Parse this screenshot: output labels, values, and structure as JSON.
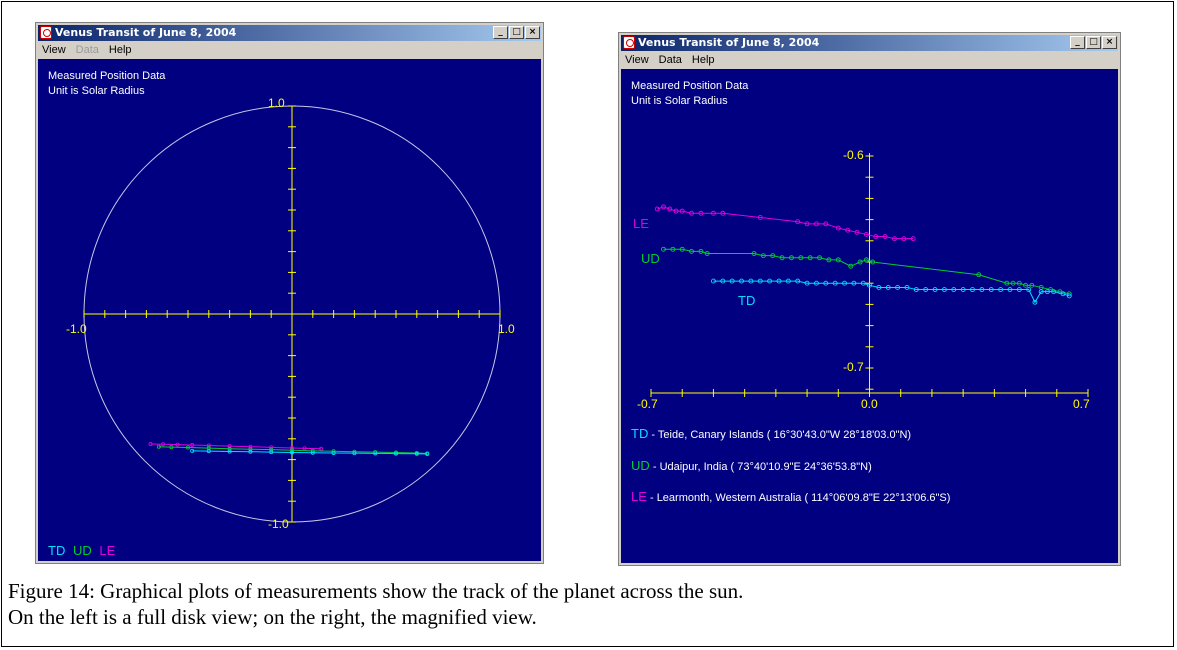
{
  "windows": {
    "left": {
      "title": "Venus Transit of June 8, 2004",
      "menu": [
        {
          "label": "View",
          "enabled": true
        },
        {
          "label": "Data",
          "enabled": false
        },
        {
          "label": "Help",
          "enabled": true
        }
      ],
      "info_line1": "Measured Position Data",
      "info_line2": "Unit is Solar Radius",
      "x_ticks": [
        "-1.0",
        "1.0"
      ],
      "y_ticks": [
        "1.0",
        "-1.0"
      ],
      "legend": [
        "TD",
        "UD",
        "LE"
      ]
    },
    "right": {
      "title": "Venus Transit of June 8, 2004",
      "menu": [
        {
          "label": "View",
          "enabled": true
        },
        {
          "label": "Data",
          "enabled": true
        },
        {
          "label": "Help",
          "enabled": true
        }
      ],
      "info_line1": "Measured Position Data",
      "info_line2": "Unit is Solar Radius",
      "x_ticks": [
        "-0.7",
        "0.0",
        "0.7"
      ],
      "y_ticks": [
        "-0.6",
        "-0.7"
      ],
      "series_labels": [
        "LE",
        "UD",
        "TD"
      ],
      "legend": [
        {
          "code": "TD",
          "sep": " - ",
          "text": "Teide, Canary Islands ( 16°30'43.0\"W  28°18'03.0\"N)"
        },
        {
          "code": "UD",
          "sep": " - ",
          "text": "Udaipur, India ( 73°40'10.9\"E  24°36'53.8\"N)"
        },
        {
          "code": "LE",
          "sep": " - ",
          "text": "Learmonth, Western Australia ( 114°06'09.8\"E  22°13'06.6\"S)"
        }
      ]
    }
  },
  "colors": {
    "TD": "#00e0ff",
    "UD": "#00cc33",
    "LE": "#e000e0",
    "axis": "#ffff00",
    "plot_bg": "#000080"
  },
  "chart_data": [
    {
      "type": "scatter",
      "title": "",
      "xlim": [
        -1.0,
        1.0
      ],
      "ylim": [
        -1.0,
        1.0
      ],
      "series": [
        {
          "name": "LE",
          "x": [
            -0.68,
            -0.62,
            -0.55,
            -0.48,
            -0.4,
            -0.3,
            -0.2,
            -0.1,
            0.0,
            0.06,
            0.14
          ],
          "y": [
            -0.625,
            -0.626,
            -0.628,
            -0.63,
            -0.632,
            -0.635,
            -0.638,
            -0.641,
            -0.644,
            -0.646,
            -0.648
          ]
        },
        {
          "name": "UD",
          "x": [
            -0.64,
            -0.58,
            -0.5,
            -0.4,
            -0.3,
            -0.2,
            -0.1,
            0.0,
            0.1,
            0.2,
            0.3,
            0.4,
            0.5,
            0.6,
            0.65
          ],
          "y": [
            -0.638,
            -0.64,
            -0.642,
            -0.645,
            -0.648,
            -0.65,
            -0.652,
            -0.655,
            -0.658,
            -0.66,
            -0.662,
            -0.664,
            -0.666,
            -0.668,
            -0.67
          ]
        },
        {
          "name": "TD",
          "x": [
            -0.48,
            -0.4,
            -0.3,
            -0.2,
            -0.1,
            0.0,
            0.1,
            0.2,
            0.3,
            0.4,
            0.5,
            0.6,
            0.65
          ],
          "y": [
            -0.658,
            -0.659,
            -0.661,
            -0.662,
            -0.664,
            -0.666,
            -0.667,
            -0.668,
            -0.669,
            -0.67,
            -0.671,
            -0.672,
            -0.673
          ]
        }
      ]
    },
    {
      "type": "line",
      "title": "",
      "xlim": [
        -0.7,
        0.7
      ],
      "ylim": [
        -0.72,
        -0.6
      ],
      "series": [
        {
          "name": "LE",
          "x": [
            -0.68,
            -0.66,
            -0.64,
            -0.62,
            -0.6,
            -0.57,
            -0.54,
            -0.5,
            -0.47,
            -0.35,
            -0.23,
            -0.2,
            -0.17,
            -0.14,
            -0.1,
            -0.07,
            -0.04,
            -0.01,
            0.02,
            0.05,
            0.08,
            0.11,
            0.14
          ],
          "y": [
            -0.625,
            -0.624,
            -0.625,
            -0.626,
            -0.626,
            -0.627,
            -0.627,
            -0.627,
            -0.627,
            -0.629,
            -0.631,
            -0.632,
            -0.632,
            -0.632,
            -0.634,
            -0.635,
            -0.636,
            -0.637,
            -0.638,
            -0.638,
            -0.639,
            -0.639,
            -0.639
          ]
        },
        {
          "name": "UD",
          "x": [
            -0.66,
            -0.63,
            -0.6,
            -0.57,
            -0.54,
            -0.52,
            -0.37,
            -0.34,
            -0.31,
            -0.28,
            -0.25,
            -0.22,
            -0.19,
            -0.16,
            -0.13,
            -0.1,
            -0.06,
            -0.03,
            -0.01,
            0.01,
            0.35,
            0.44,
            0.46,
            0.48,
            0.5,
            0.52,
            0.55,
            0.58,
            0.61,
            0.64
          ],
          "y": [
            -0.644,
            -0.644,
            -0.644,
            -0.645,
            -0.645,
            -0.646,
            -0.646,
            -0.647,
            -0.647,
            -0.648,
            -0.648,
            -0.648,
            -0.648,
            -0.648,
            -0.649,
            -0.649,
            -0.652,
            -0.65,
            -0.649,
            -0.65,
            -0.656,
            -0.66,
            -0.66,
            -0.66,
            -0.661,
            -0.661,
            -0.662,
            -0.663,
            -0.664,
            -0.665
          ]
        },
        {
          "name": "TD",
          "x": [
            -0.5,
            -0.47,
            -0.44,
            -0.41,
            -0.38,
            -0.35,
            -0.32,
            -0.29,
            -0.26,
            -0.23,
            -0.2,
            -0.17,
            -0.14,
            -0.11,
            -0.08,
            -0.05,
            -0.02,
            0.0,
            0.03,
            0.06,
            0.09,
            0.12,
            0.15,
            0.18,
            0.21,
            0.24,
            0.27,
            0.3,
            0.33,
            0.36,
            0.39,
            0.42,
            0.45,
            0.48,
            0.51,
            0.53,
            0.55,
            0.57,
            0.59,
            0.62,
            0.64
          ],
          "y": [
            -0.659,
            -0.659,
            -0.659,
            -0.659,
            -0.659,
            -0.659,
            -0.659,
            -0.659,
            -0.659,
            -0.659,
            -0.66,
            -0.66,
            -0.66,
            -0.66,
            -0.66,
            -0.66,
            -0.66,
            -0.661,
            -0.662,
            -0.662,
            -0.662,
            -0.662,
            -0.663,
            -0.663,
            -0.663,
            -0.663,
            -0.663,
            -0.663,
            -0.663,
            -0.663,
            -0.663,
            -0.663,
            -0.663,
            -0.663,
            -0.663,
            -0.669,
            -0.664,
            -0.664,
            -0.664,
            -0.665,
            -0.666
          ]
        }
      ]
    }
  ],
  "caption": {
    "line1": "Figure 14: Graphical plots of measurements show the track of the planet across the sun.",
    "line2": "On  the left is a full disk view; on the right, the magnified view."
  }
}
